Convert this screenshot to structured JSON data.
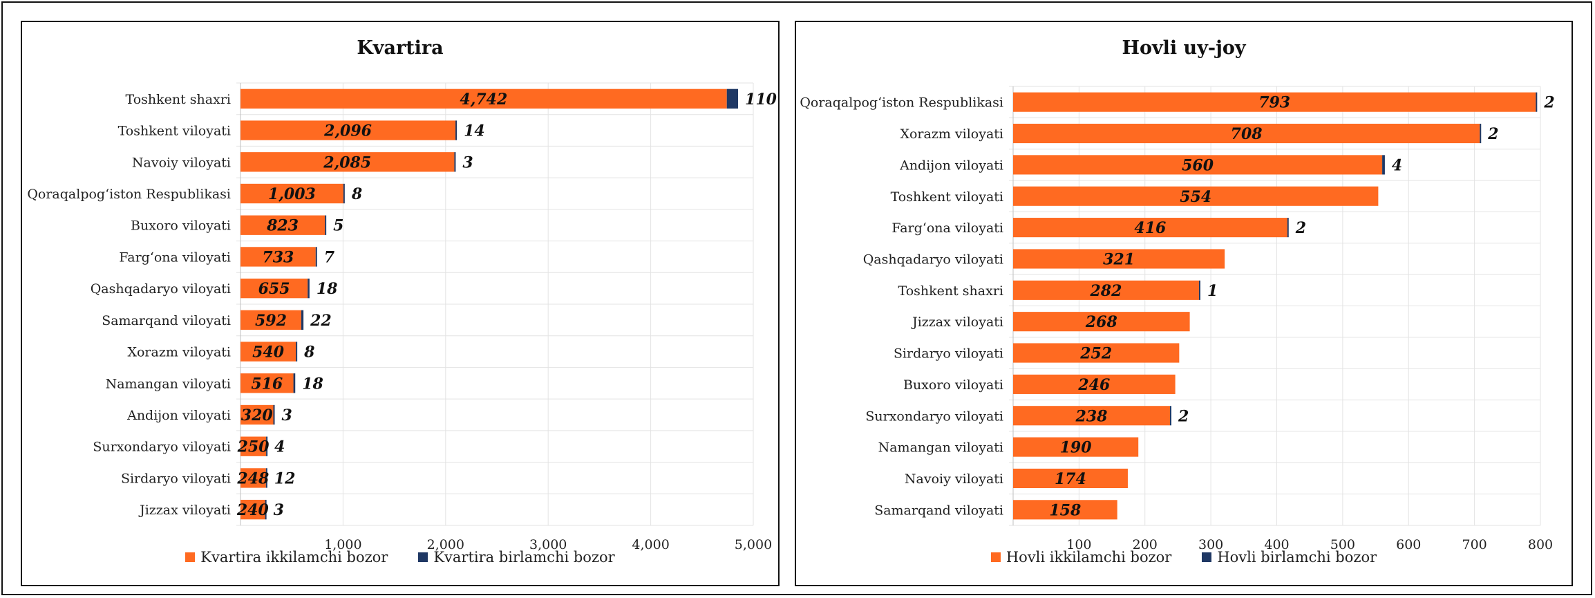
{
  "colors": {
    "secondary": "#FF6A21",
    "primary": "#1F3864",
    "grid": "#E3E3E3"
  },
  "chart_data": [
    {
      "type": "bar",
      "orientation": "horizontal",
      "stacked": true,
      "title": "Kvartira",
      "categories": [
        "Toshkent shaxri",
        "Toshkent viloyati",
        "Navoiy viloyati",
        "Qoraqalpog‘iston Respublikasi",
        "Buxoro viloyati",
        "Farg‘ona viloyati",
        "Qashqadaryo viloyati",
        "Samarqand viloyati",
        "Xorazm viloyati",
        "Namangan viloyati",
        "Andijon viloyati",
        "Surxondaryo viloyati",
        "Sirdaryo viloyati",
        "Jizzax viloyati"
      ],
      "series": [
        {
          "name": "Kvartira ikkilamchi bozor",
          "values": [
            4742,
            2096,
            2085,
            1003,
            823,
            733,
            655,
            592,
            540,
            516,
            320,
            250,
            248,
            240
          ],
          "labels": [
            "4,742",
            "2,096",
            "2,085",
            "1,003",
            "823",
            "733",
            "655",
            "592",
            "540",
            "516",
            "320",
            "250",
            "248",
            "240"
          ]
        },
        {
          "name": "Kvartira birlamchi bozor",
          "values": [
            110,
            14,
            3,
            8,
            5,
            7,
            18,
            22,
            8,
            18,
            3,
            4,
            12,
            3
          ],
          "labels": [
            "110",
            "14",
            "3",
            "8",
            "5",
            "7",
            "18",
            "22",
            "8",
            "18",
            "3",
            "4",
            "12",
            "3"
          ]
        }
      ],
      "xlim": [
        0,
        5000
      ],
      "xticks": [
        1000,
        2000,
        3000,
        4000,
        5000
      ],
      "xtick_labels": [
        "1,000",
        "2,000",
        "3,000",
        "4,000",
        "5,000"
      ],
      "grid": true,
      "legend_position": "bottom"
    },
    {
      "type": "bar",
      "orientation": "horizontal",
      "stacked": true,
      "title": "Hovli uy-joy",
      "categories": [
        "Qoraqalpog‘iston Respublikasi",
        "Xorazm viloyati",
        "Andijon viloyati",
        "Toshkent viloyati",
        "Farg‘ona viloyati",
        "Qashqadaryo viloyati",
        "Toshkent shaxri",
        "Jizzax viloyati",
        "Sirdaryo viloyati",
        "Buxoro viloyati",
        "Surxondaryo viloyati",
        "Namangan viloyati",
        "Navoiy viloyati",
        "Samarqand viloyati"
      ],
      "series": [
        {
          "name": "Hovli ikkilamchi bozor",
          "values": [
            793,
            708,
            560,
            554,
            416,
            321,
            282,
            268,
            252,
            246,
            238,
            190,
            174,
            158
          ],
          "labels": [
            "793",
            "708",
            "560",
            "554",
            "416",
            "321",
            "282",
            "268",
            "252",
            "246",
            "238",
            "190",
            "174",
            "158"
          ]
        },
        {
          "name": "Hovli birlamchi bozor",
          "values": [
            2,
            2,
            4,
            0,
            2,
            0,
            1,
            0,
            0,
            0,
            2,
            0,
            0,
            0
          ],
          "labels": [
            "2",
            "2",
            "4",
            "",
            "2",
            "",
            "1",
            "",
            "",
            "",
            "2",
            "",
            "",
            ""
          ]
        }
      ],
      "xlim": [
        0,
        800
      ],
      "xticks": [
        100,
        200,
        300,
        400,
        500,
        600,
        700,
        800
      ],
      "xtick_labels": [
        "100",
        "200",
        "300",
        "400",
        "500",
        "600",
        "700",
        "800"
      ],
      "grid": true,
      "legend_position": "bottom"
    }
  ]
}
